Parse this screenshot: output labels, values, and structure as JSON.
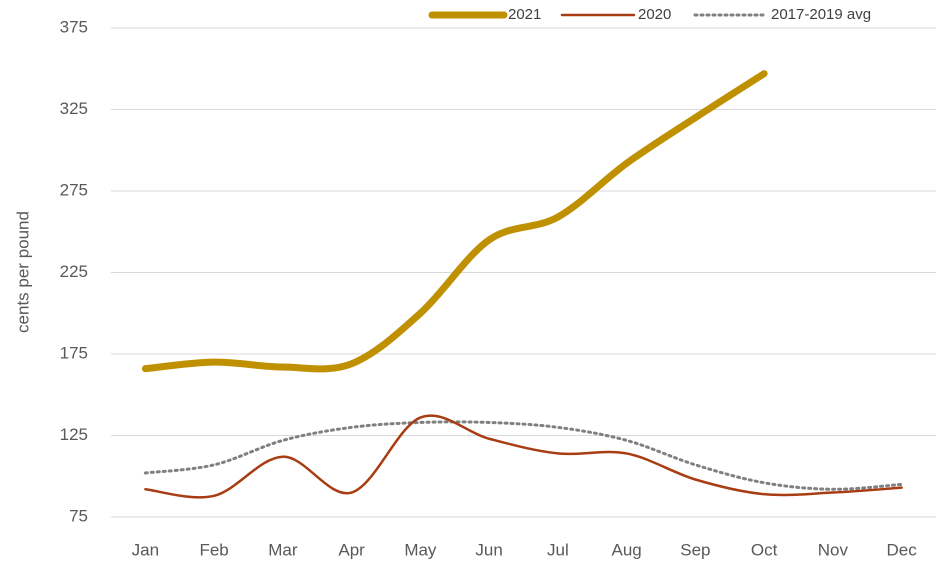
{
  "chart_data": {
    "type": "line",
    "y_label": "cents per pound",
    "categories": [
      "Jan",
      "Feb",
      "Mar",
      "Apr",
      "May",
      "Jun",
      "Jul",
      "Aug",
      "Sep",
      "Oct",
      "Nov",
      "Dec"
    ],
    "series": [
      {
        "name": "2021",
        "color": "#bf9000",
        "width": 7,
        "dash": "",
        "values": [
          166,
          170,
          167,
          169,
          200,
          245,
          259,
          292,
          320,
          347,
          null,
          null
        ]
      },
      {
        "name": "2020",
        "color": "#a83c12",
        "width": 2.5,
        "dash": "",
        "values": [
          92,
          88,
          112,
          90,
          136,
          123,
          114,
          114,
          98,
          89,
          90,
          93
        ]
      },
      {
        "name": "2017-2019 avg",
        "color": "#808080",
        "width": 3,
        "dash": "2 4",
        "values": [
          102,
          107,
          122,
          130,
          133,
          133,
          130,
          122,
          107,
          96,
          92,
          95
        ]
      }
    ],
    "ylim": [
      75,
      375
    ],
    "yticks": [
      75,
      125,
      175,
      225,
      275,
      325,
      375
    ],
    "grid": true,
    "legend": "top-right"
  }
}
